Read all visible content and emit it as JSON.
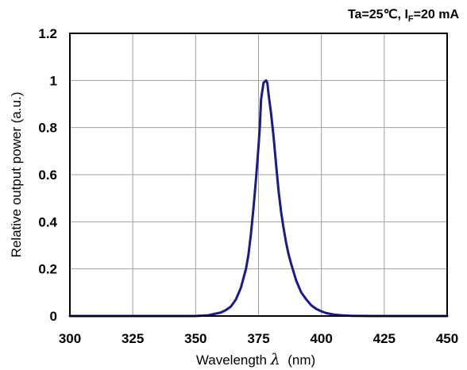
{
  "chart_data": {
    "type": "line",
    "annotation": {
      "prefix": "Ta=25℃, I",
      "subscript": "F",
      "suffix": "=20 mA"
    },
    "xlabel": {
      "text": "Wavelength ",
      "symbol": "λ",
      "unit": "  (nm)"
    },
    "ylabel": "Relative output power (a.u.)",
    "xlim": [
      300,
      450
    ],
    "ylim": [
      0,
      1.2
    ],
    "xticks": [
      300,
      325,
      350,
      375,
      400,
      425,
      450
    ],
    "xtick_labels": [
      "300",
      "325",
      "350",
      "375",
      "400",
      "425",
      "450"
    ],
    "yticks": [
      0,
      0.2,
      0.4,
      0.6,
      0.8,
      1,
      1.2
    ],
    "ytick_labels": [
      "0",
      "0.2",
      "0.4",
      "0.6",
      "0.8",
      "1",
      "1.2"
    ],
    "grid": true,
    "series": [
      {
        "color": "#1a1a8c",
        "x": [
          300,
          340,
          350,
          355,
          358,
          360,
          362,
          364,
          366,
          368,
          370,
          371,
          372,
          373,
          374,
          375,
          375.5,
          376,
          377,
          378,
          378.5,
          379,
          380,
          381,
          382,
          383,
          384,
          385,
          386,
          387,
          388,
          390,
          392,
          394,
          396,
          398,
          400,
          402,
          405,
          408,
          412,
          420,
          450
        ],
        "y": [
          0,
          0,
          0,
          0.003,
          0.01,
          0.015,
          0.025,
          0.04,
          0.07,
          0.12,
          0.2,
          0.26,
          0.35,
          0.46,
          0.58,
          0.72,
          0.8,
          0.92,
          0.99,
          1.0,
          0.99,
          0.94,
          0.86,
          0.76,
          0.64,
          0.53,
          0.44,
          0.37,
          0.31,
          0.26,
          0.22,
          0.15,
          0.1,
          0.07,
          0.045,
          0.03,
          0.02,
          0.012,
          0.006,
          0.003,
          0.001,
          0,
          0
        ]
      }
    ]
  }
}
